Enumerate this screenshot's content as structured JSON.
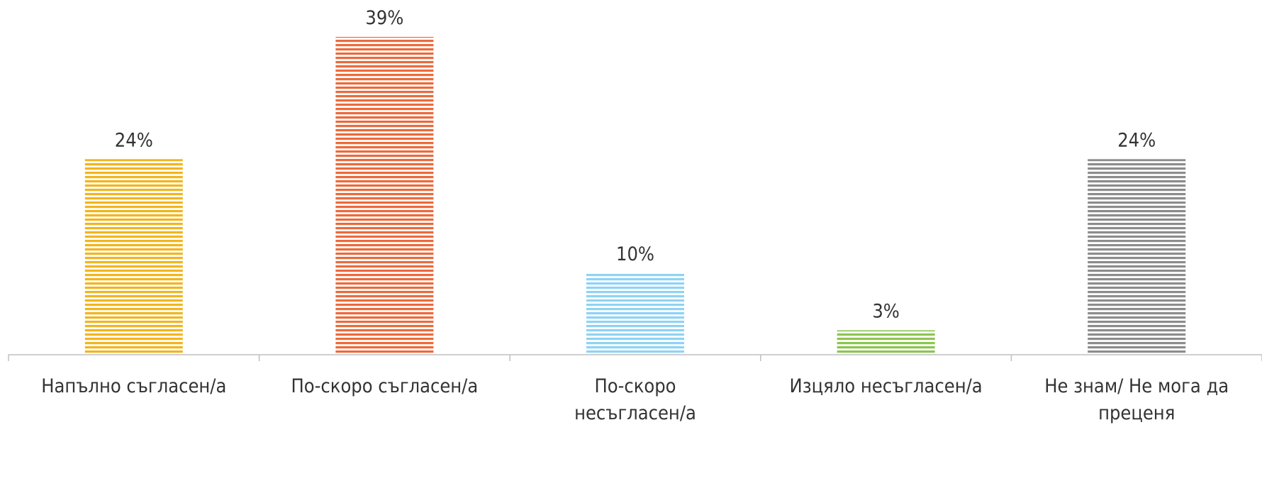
{
  "chart_data": {
    "type": "bar",
    "categories": [
      "Напълно съгласен/а",
      "По-скоро съгласен/а",
      "По-скоро несъгласен/а",
      "Изцяло несъгласен/а",
      "Не знам/ Не мога да преценя"
    ],
    "category_lines": [
      [
        "Напълно съгласен/а"
      ],
      [
        "По-скоро съгласен/а"
      ],
      [
        "По-скоро",
        "несъгласен/а"
      ],
      [
        "Изцяло несъгласен/а"
      ],
      [
        "Не знам/ Не мога да",
        "преценя"
      ]
    ],
    "values": [
      24,
      39,
      10,
      3,
      24
    ],
    "value_labels": [
      "24%",
      "39%",
      "10%",
      "3%",
      "24%"
    ],
    "colors": [
      "#f2b51c",
      "#ec6a3c",
      "#8fd3f4",
      "#8dc451",
      "#8c8c8c"
    ],
    "fill_pattern": "horizontal-stripes",
    "ylim": [
      0,
      39
    ],
    "grid": false,
    "legend": "none",
    "title": "",
    "xlabel": "",
    "ylabel": ""
  }
}
